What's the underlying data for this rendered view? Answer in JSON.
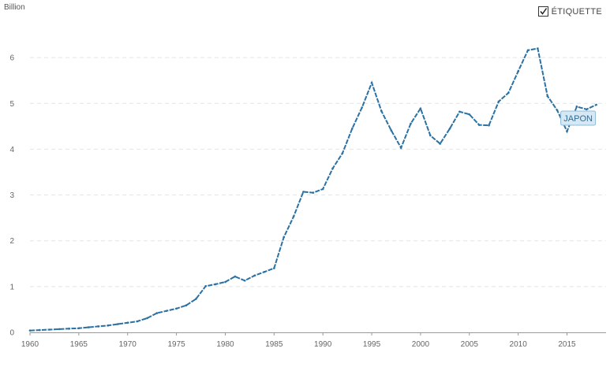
{
  "unit_label": "Billion",
  "legend_toggle": {
    "label": "ÉTIQUETTE",
    "checked": true
  },
  "colors": {
    "series": "#2b71a3",
    "label_bg": "#d5e8f4",
    "label_border": "#8bbbd9",
    "label_text": "#2c6f9a"
  },
  "chart_data": {
    "type": "line",
    "title": "",
    "xlabel": "",
    "ylabel": "Billion",
    "xlim": [
      1960,
      2019
    ],
    "ylim": [
      0,
      7
    ],
    "x_ticks": [
      1960,
      1965,
      1970,
      1975,
      1980,
      1985,
      1990,
      1995,
      2000,
      2005,
      2010,
      2015
    ],
    "y_ticks": [
      0,
      1,
      2,
      3,
      4,
      5,
      6
    ],
    "grid": true,
    "series": [
      {
        "name": "JAPON",
        "x": [
          1960,
          1961,
          1962,
          1963,
          1964,
          1965,
          1966,
          1967,
          1968,
          1969,
          1970,
          1971,
          1972,
          1973,
          1974,
          1975,
          1976,
          1977,
          1978,
          1979,
          1980,
          1981,
          1982,
          1983,
          1984,
          1985,
          1986,
          1987,
          1988,
          1989,
          1990,
          1991,
          1992,
          1993,
          1994,
          1995,
          1996,
          1997,
          1998,
          1999,
          2000,
          2001,
          2002,
          2003,
          2004,
          2005,
          2006,
          2007,
          2008,
          2009,
          2010,
          2011,
          2012,
          2013,
          2014,
          2015,
          2016,
          2017,
          2018
        ],
        "values": [
          0.04,
          0.05,
          0.06,
          0.07,
          0.08,
          0.09,
          0.11,
          0.13,
          0.15,
          0.18,
          0.21,
          0.24,
          0.31,
          0.42,
          0.47,
          0.52,
          0.59,
          0.73,
          1.01,
          1.05,
          1.1,
          1.22,
          1.13,
          1.24,
          1.32,
          1.4,
          2.08,
          2.53,
          3.07,
          3.05,
          3.13,
          3.58,
          3.91,
          4.45,
          4.91,
          5.45,
          4.83,
          4.41,
          4.03,
          4.56,
          4.89,
          4.3,
          4.12,
          4.45,
          4.82,
          4.76,
          4.53,
          4.52,
          5.04,
          5.23,
          5.7,
          6.16,
          6.2,
          5.16,
          4.85,
          4.39,
          4.93,
          4.87,
          4.97
        ]
      }
    ]
  }
}
